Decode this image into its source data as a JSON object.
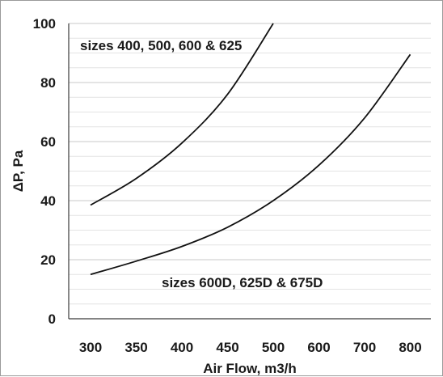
{
  "chart_data": {
    "type": "line",
    "title": "",
    "xlabel": "Air Flow, m3/h",
    "ylabel": "ΔP,  Pa",
    "y_ticks": [
      "0",
      "20",
      "40",
      "60",
      "80",
      "100"
    ],
    "ylim": [
      0,
      100
    ],
    "x_ticks": [
      "300",
      "350",
      "400",
      "450",
      "500",
      "600",
      "700",
      "800"
    ],
    "x_axis_note": "non-uniform axis: 50 m3/h steps from 300 to 500, then 100 m3/h steps to 800",
    "grid": "horizontal gridlines every 20 Pa with minor lines every 5 Pa",
    "series": [
      {
        "name": "sizes 400, 500, 600 & 625",
        "x": [
          300,
          350,
          400,
          450,
          500
        ],
        "y": [
          38.5,
          47.5,
          59.5,
          76,
          100
        ]
      },
      {
        "name": "sizes 600D, 625D & 675D",
        "x": [
          300,
          350,
          400,
          450,
          500,
          600,
          700,
          800
        ],
        "y": [
          15,
          19.5,
          24.5,
          31,
          40,
          52,
          68,
          89.5
        ]
      }
    ],
    "annotations": [
      {
        "text": "sizes 400, 500, 600 & 625",
        "series": 0
      },
      {
        "text": "sizes 600D, 625D & 675D",
        "series": 1
      }
    ]
  }
}
